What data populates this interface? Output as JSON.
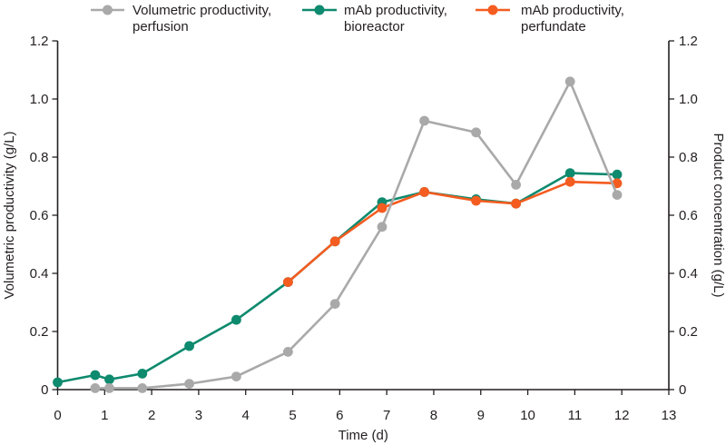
{
  "figure": {
    "background": "#ffffff",
    "text_color": "#231f20",
    "axis_color": "#231f20"
  },
  "chart_data": {
    "type": "line",
    "title": "",
    "xlabel": "Time (d)",
    "ylabel_left": "Volumetric productivity (g/L)",
    "ylabel_right": "Product concentration (g/L)",
    "xlim": [
      0,
      13
    ],
    "ylim": [
      0,
      1.2
    ],
    "xticks": [
      0,
      1,
      2,
      3,
      4,
      5,
      6,
      7,
      8,
      9,
      10,
      11,
      12,
      13
    ],
    "xtick_labels": [
      "0",
      "1",
      "2",
      "3",
      "4",
      "5",
      "6",
      "7",
      "8",
      "9",
      "10",
      "11",
      "12",
      "13"
    ],
    "yticks": [
      0,
      0.2,
      0.4,
      0.6,
      0.8,
      1.0,
      1.2
    ],
    "ytick_labels": [
      "0",
      "0.2",
      "0.4",
      "0.6",
      "0.8",
      "1.0",
      "1.2"
    ],
    "grid": false,
    "legend_position": "top",
    "series": [
      {
        "name": "volumetric-productivity-perfusion",
        "label": [
          "Volumetric productivity,",
          "perfusion"
        ],
        "color": "#a9a9a9",
        "x": [
          0.8,
          1.1,
          1.8,
          2.8,
          3.8,
          4.9,
          5.9,
          6.9,
          7.8,
          8.9,
          9.75,
          10.9,
          11.9
        ],
        "y": [
          0.005,
          0.005,
          0.005,
          0.02,
          0.045,
          0.13,
          0.295,
          0.56,
          0.925,
          0.885,
          0.705,
          1.06,
          0.67
        ]
      },
      {
        "name": "mab-productivity-bioreactor",
        "label": [
          "mAb productivity,",
          "bioreactor"
        ],
        "color": "#0e8a6e",
        "x": [
          0,
          0.8,
          1.1,
          1.8,
          2.8,
          3.8,
          4.9,
          5.9,
          6.9,
          7.8,
          8.9,
          9.75,
          10.9,
          11.9
        ],
        "y": [
          0.025,
          0.05,
          0.035,
          0.055,
          0.15,
          0.24,
          0.37,
          0.51,
          0.645,
          0.68,
          0.655,
          0.64,
          0.745,
          0.74
        ]
      },
      {
        "name": "mab-productivity-perfundate",
        "label": [
          "mAb productivity,",
          "perfundate"
        ],
        "color": "#f45c20",
        "x": [
          4.9,
          5.9,
          6.9,
          7.8,
          8.9,
          9.75,
          10.9,
          11.9
        ],
        "y": [
          0.37,
          0.51,
          0.625,
          0.68,
          0.65,
          0.64,
          0.715,
          0.71
        ]
      }
    ],
    "draw_order": [
      1,
      2,
      0
    ]
  }
}
